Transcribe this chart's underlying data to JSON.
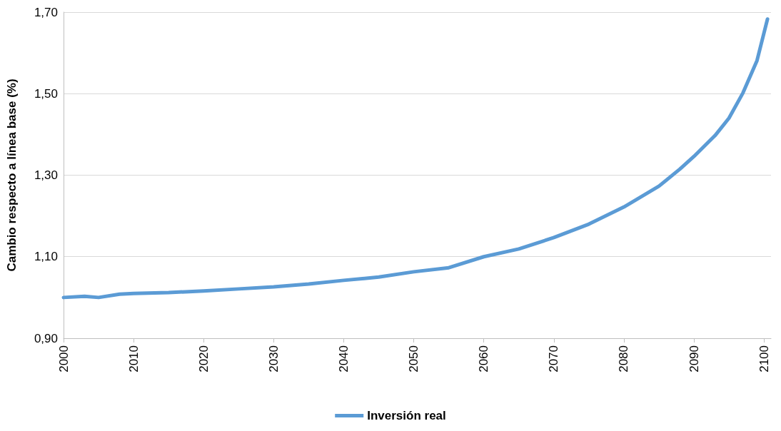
{
  "chart_data": {
    "type": "line",
    "ylabel": "Cambio respecto a línea base (%)",
    "x": [
      2000,
      2003,
      2005,
      2008,
      2010,
      2015,
      2020,
      2025,
      2030,
      2035,
      2040,
      2045,
      2050,
      2055,
      2060,
      2065,
      2070,
      2075,
      2080,
      2085,
      2088,
      2090,
      2093,
      2095,
      2097,
      2099,
      2100.5
    ],
    "series": [
      {
        "name": "Inversión real",
        "color": "#5b9bd5",
        "values": [
          1.0,
          1.003,
          1.0,
          1.008,
          1.01,
          1.012,
          1.016,
          1.021,
          1.026,
          1.033,
          1.042,
          1.05,
          1.063,
          1.073,
          1.1,
          1.119,
          1.147,
          1.18,
          1.222,
          1.273,
          1.315,
          1.346,
          1.397,
          1.44,
          1.502,
          1.581,
          1.683
        ]
      }
    ],
    "xlim": [
      2000,
      2101
    ],
    "xticks": [
      2000,
      2010,
      2020,
      2030,
      2040,
      2050,
      2060,
      2070,
      2080,
      2090,
      2100
    ],
    "ylim": [
      0.9,
      1.7
    ],
    "yticks": [
      {
        "value": 0.9,
        "label": "0,90"
      },
      {
        "value": 1.1,
        "label": "1,10"
      },
      {
        "value": 1.3,
        "label": "1,30"
      },
      {
        "value": 1.5,
        "label": "1,50"
      },
      {
        "value": 1.7,
        "label": "1,70"
      }
    ],
    "grid": "y",
    "legend": "bottom",
    "marker": "none",
    "line_style": "solid"
  }
}
